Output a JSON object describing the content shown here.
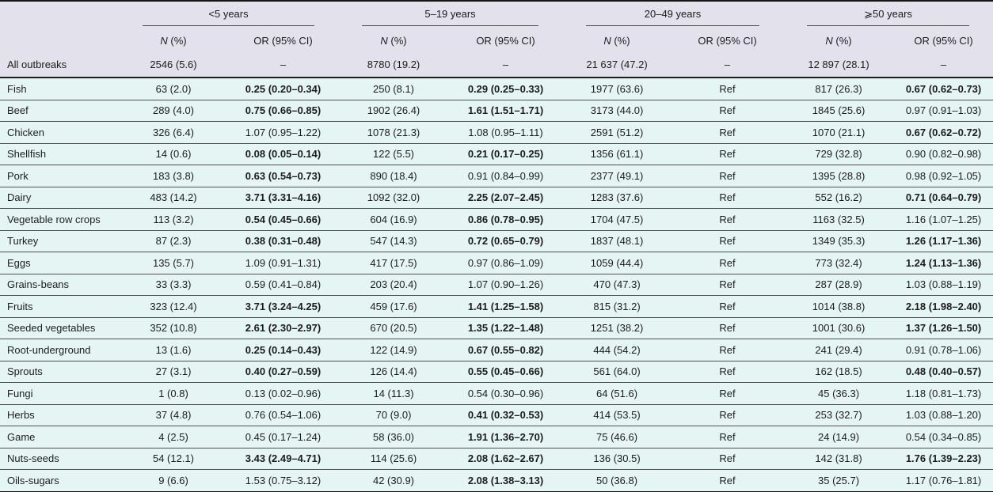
{
  "colors": {
    "header_bg": "#e3e1ec",
    "body_bg": "#e5f5f4",
    "rule_dark": "#1c1c1c",
    "rule_light": "#4f4f4f",
    "text": "#1c1c1c"
  },
  "table": {
    "groups": [
      {
        "label": "<5 years"
      },
      {
        "label": "5–19 years"
      },
      {
        "label": "20–49 years"
      },
      {
        "label": "⩾50 years"
      }
    ],
    "sub": {
      "n": "N (%)",
      "or": "OR (95% CI)"
    },
    "all_outbreaks": {
      "label": "All outbreaks",
      "cells": [
        "2546 (5.6)",
        "–",
        "8780 (19.2)",
        "–",
        "21 637 (47.2)",
        "–",
        "12 897 (28.1)",
        "–"
      ]
    },
    "rows": [
      {
        "label": "Fish",
        "cells": [
          {
            "t": "63 (2.0)"
          },
          {
            "t": "0.25 (0.20–0.34)",
            "b": true
          },
          {
            "t": "250 (8.1)"
          },
          {
            "t": "0.29 (0.25–0.33)",
            "b": true
          },
          {
            "t": "1977 (63.6)"
          },
          {
            "t": "Ref"
          },
          {
            "t": "817 (26.3)"
          },
          {
            "t": "0.67 (0.62–0.73)",
            "b": true
          }
        ]
      },
      {
        "label": "Beef",
        "cells": [
          {
            "t": "289 (4.0)"
          },
          {
            "t": "0.75 (0.66–0.85)",
            "b": true
          },
          {
            "t": "1902 (26.4)"
          },
          {
            "t": "1.61 (1.51–1.71)",
            "b": true
          },
          {
            "t": "3173 (44.0)"
          },
          {
            "t": "Ref"
          },
          {
            "t": "1845 (25.6)"
          },
          {
            "t": "0.97 (0.91–1.03)"
          }
        ]
      },
      {
        "label": "Chicken",
        "cells": [
          {
            "t": "326 (6.4)"
          },
          {
            "t": "1.07 (0.95–1.22)"
          },
          {
            "t": "1078 (21.3)"
          },
          {
            "t": "1.08 (0.95–1.11)"
          },
          {
            "t": "2591 (51.2)"
          },
          {
            "t": "Ref"
          },
          {
            "t": "1070 (21.1)"
          },
          {
            "t": "0.67 (0.62–0.72)",
            "b": true
          }
        ]
      },
      {
        "label": "Shellfish",
        "cells": [
          {
            "t": "14 (0.6)"
          },
          {
            "t": "0.08 (0.05–0.14)",
            "b": true
          },
          {
            "t": "122 (5.5)"
          },
          {
            "t": "0.21 (0.17–0.25)",
            "b": true
          },
          {
            "t": "1356 (61.1)"
          },
          {
            "t": "Ref"
          },
          {
            "t": "729 (32.8)"
          },
          {
            "t": "0.90 (0.82–0.98)"
          }
        ]
      },
      {
        "label": "Pork",
        "cells": [
          {
            "t": "183 (3.8)"
          },
          {
            "t": "0.63 (0.54–0.73)",
            "b": true
          },
          {
            "t": "890 (18.4)"
          },
          {
            "t": "0.91 (0.84–0.99)"
          },
          {
            "t": "2377 (49.1)"
          },
          {
            "t": "Ref"
          },
          {
            "t": "1395 (28.8)"
          },
          {
            "t": "0.98 (0.92–1.05)"
          }
        ]
      },
      {
        "label": "Dairy",
        "cells": [
          {
            "t": "483 (14.2)"
          },
          {
            "t": "3.71 (3.31–4.16)",
            "b": true
          },
          {
            "t": "1092 (32.0)"
          },
          {
            "t": "2.25 (2.07–2.45)",
            "b": true
          },
          {
            "t": "1283 (37.6)"
          },
          {
            "t": "Ref"
          },
          {
            "t": "552 (16.2)"
          },
          {
            "t": "0.71 (0.64–0.79)",
            "b": true
          }
        ]
      },
      {
        "label": "Vegetable row crops",
        "cells": [
          {
            "t": "113 (3.2)"
          },
          {
            "t": "0.54 (0.45–0.66)",
            "b": true
          },
          {
            "t": "604 (16.9)"
          },
          {
            "t": "0.86 (0.78–0.95)",
            "b": true
          },
          {
            "t": "1704 (47.5)"
          },
          {
            "t": "Ref"
          },
          {
            "t": "1163 (32.5)"
          },
          {
            "t": "1.16 (1.07–1.25)"
          }
        ]
      },
      {
        "label": "Turkey",
        "cells": [
          {
            "t": "87 (2.3)"
          },
          {
            "t": "0.38 (0.31–0.48)",
            "b": true
          },
          {
            "t": "547 (14.3)"
          },
          {
            "t": "0.72 (0.65–0.79)",
            "b": true
          },
          {
            "t": "1837 (48.1)"
          },
          {
            "t": "Ref"
          },
          {
            "t": "1349 (35.3)"
          },
          {
            "t": "1.26 (1.17–1.36)",
            "b": true
          }
        ]
      },
      {
        "label": "Eggs",
        "cells": [
          {
            "t": "135 (5.7)"
          },
          {
            "t": "1.09 (0.91–1.31)"
          },
          {
            "t": "417 (17.5)"
          },
          {
            "t": "0.97 (0.86–1.09)"
          },
          {
            "t": "1059 (44.4)"
          },
          {
            "t": "Ref"
          },
          {
            "t": "773 (32.4)"
          },
          {
            "t": "1.24 (1.13–1.36)",
            "b": true
          }
        ]
      },
      {
        "label": "Grains-beans",
        "cells": [
          {
            "t": "33 (3.3)"
          },
          {
            "t": "0.59 (0.41–0.84)"
          },
          {
            "t": "203 (20.4)"
          },
          {
            "t": "1.07 (0.90–1.26)"
          },
          {
            "t": "470 (47.3)"
          },
          {
            "t": "Ref"
          },
          {
            "t": "287 (28.9)"
          },
          {
            "t": "1.03 (0.88–1.19)"
          }
        ]
      },
      {
        "label": "Fruits",
        "cells": [
          {
            "t": "323 (12.4)"
          },
          {
            "t": "3.71 (3.24–4.25)",
            "b": true
          },
          {
            "t": "459 (17.6)"
          },
          {
            "t": "1.41 (1.25–1.58)",
            "b": true
          },
          {
            "t": "815 (31.2)"
          },
          {
            "t": "Ref"
          },
          {
            "t": "1014 (38.8)"
          },
          {
            "t": "2.18 (1.98–2.40)",
            "b": true
          }
        ]
      },
      {
        "label": "Seeded vegetables",
        "cells": [
          {
            "t": "352 (10.8)"
          },
          {
            "t": "2.61 (2.30–2.97)",
            "b": true
          },
          {
            "t": "670 (20.5)"
          },
          {
            "t": "1.35 (1.22–1.48)",
            "b": true
          },
          {
            "t": "1251 (38.2)"
          },
          {
            "t": "Ref"
          },
          {
            "t": "1001 (30.6)"
          },
          {
            "t": "1.37 (1.26–1.50)",
            "b": true
          }
        ]
      },
      {
        "label": "Root-underground",
        "cells": [
          {
            "t": "13 (1.6)"
          },
          {
            "t": "0.25 (0.14–0.43)",
            "b": true
          },
          {
            "t": "122 (14.9)"
          },
          {
            "t": "0.67 (0.55–0.82)",
            "b": true
          },
          {
            "t": "444 (54.2)"
          },
          {
            "t": "Ref"
          },
          {
            "t": "241 (29.4)"
          },
          {
            "t": "0.91 (0.78–1.06)"
          }
        ]
      },
      {
        "label": "Sprouts",
        "cells": [
          {
            "t": "27 (3.1)"
          },
          {
            "t": "0.40 (0.27–0.59)",
            "b": true
          },
          {
            "t": "126 (14.4)"
          },
          {
            "t": "0.55 (0.45–0.66)",
            "b": true
          },
          {
            "t": "561 (64.0)"
          },
          {
            "t": "Ref"
          },
          {
            "t": "162 (18.5)"
          },
          {
            "t": "0.48 (0.40–0.57)",
            "b": true
          }
        ]
      },
      {
        "label": "Fungi",
        "cells": [
          {
            "t": "1 (0.8)"
          },
          {
            "t": "0.13 (0.02–0.96)"
          },
          {
            "t": "14 (11.3)"
          },
          {
            "t": "0.54 (0.30–0.96)"
          },
          {
            "t": "64 (51.6)"
          },
          {
            "t": "Ref"
          },
          {
            "t": "45 (36.3)"
          },
          {
            "t": "1.18 (0.81–1.73)"
          }
        ]
      },
      {
        "label": "Herbs",
        "cells": [
          {
            "t": "37 (4.8)"
          },
          {
            "t": "0.76 (0.54–1.06)"
          },
          {
            "t": "70 (9.0)"
          },
          {
            "t": "0.41 (0.32–0.53)",
            "b": true
          },
          {
            "t": "414 (53.5)"
          },
          {
            "t": "Ref"
          },
          {
            "t": "253 (32.7)"
          },
          {
            "t": "1.03 (0.88–1.20)"
          }
        ]
      },
      {
        "label": "Game",
        "cells": [
          {
            "t": "4 (2.5)"
          },
          {
            "t": "0.45 (0.17–1.24)"
          },
          {
            "t": "58 (36.0)"
          },
          {
            "t": "1.91 (1.36–2.70)",
            "b": true
          },
          {
            "t": "75 (46.6)"
          },
          {
            "t": "Ref"
          },
          {
            "t": "24 (14.9)"
          },
          {
            "t": "0.54 (0.34–0.85)"
          }
        ]
      },
      {
        "label": "Nuts-seeds",
        "cells": [
          {
            "t": "54 (12.1)"
          },
          {
            "t": "3.43 (2.49–4.71)",
            "b": true
          },
          {
            "t": "114 (25.6)"
          },
          {
            "t": "2.08 (1.62–2.67)",
            "b": true
          },
          {
            "t": "136 (30.5)"
          },
          {
            "t": "Ref"
          },
          {
            "t": "142 (31.8)"
          },
          {
            "t": "1.76 (1.39–2.23)",
            "b": true
          }
        ]
      },
      {
        "label": "Oils-sugars",
        "cells": [
          {
            "t": "9 (6.6)"
          },
          {
            "t": "1.53 (0.75–3.12)"
          },
          {
            "t": "42 (30.9)"
          },
          {
            "t": "2.08 (1.38–3.13)",
            "b": true
          },
          {
            "t": "50 (36.8)"
          },
          {
            "t": "Ref"
          },
          {
            "t": "35 (25.7)"
          },
          {
            "t": "1.17 (0.76–1.81)"
          }
        ]
      }
    ]
  }
}
